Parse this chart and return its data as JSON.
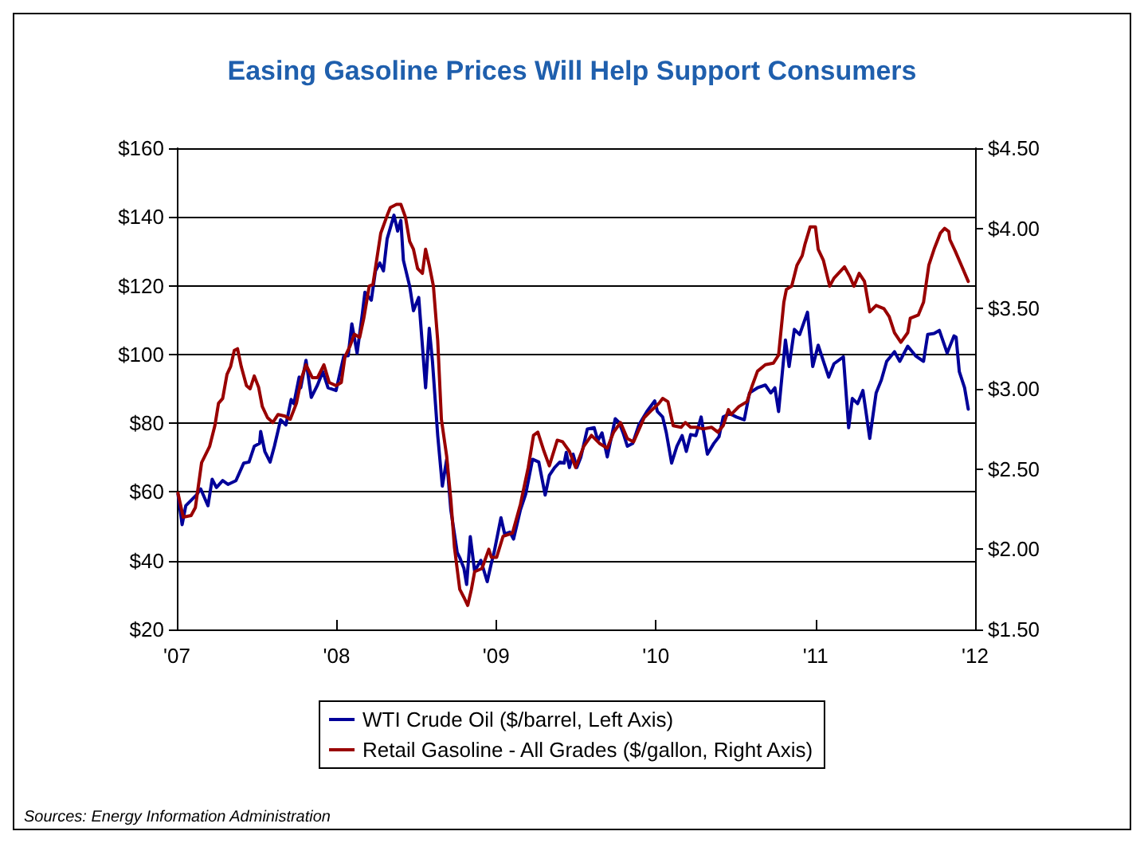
{
  "chart_data": {
    "type": "line",
    "title": "Easing Gasoline Prices Will Help Support Consumers",
    "xlim": [
      2007,
      2012
    ],
    "xticks": [
      {
        "value": 2007,
        "label": "'07"
      },
      {
        "value": 2008,
        "label": "'08"
      },
      {
        "value": 2009,
        "label": "'09"
      },
      {
        "value": 2010,
        "label": "'10"
      },
      {
        "value": 2011,
        "label": "'11"
      },
      {
        "value": 2012,
        "label": "'12"
      }
    ],
    "ylim": [
      20,
      160
    ],
    "yticks": [
      {
        "value": 20,
        "label": "$20"
      },
      {
        "value": 40,
        "label": "$40"
      },
      {
        "value": 60,
        "label": "$60"
      },
      {
        "value": 80,
        "label": "$80"
      },
      {
        "value": 100,
        "label": "$100"
      },
      {
        "value": 120,
        "label": "$120"
      },
      {
        "value": 140,
        "label": "$140"
      },
      {
        "value": 160,
        "label": "$160"
      }
    ],
    "y2lim": [
      1.5,
      4.5
    ],
    "y2ticks": [
      {
        "value": 1.5,
        "label": "$1.50"
      },
      {
        "value": 2,
        "label": "$2.00"
      },
      {
        "value": 2.5,
        "label": "$2.50"
      },
      {
        "value": 3,
        "label": "$3.00"
      },
      {
        "value": 3.5,
        "label": "$3.50"
      },
      {
        "value": 4,
        "label": "$4.00"
      },
      {
        "value": 4.5,
        "label": "$4.50"
      }
    ],
    "grid": "y",
    "legend": "bottom",
    "marker": "none",
    "line_style": "solid",
    "annotations": [
      "Sources: Energy Information Administration"
    ],
    "series": [
      {
        "name": "WTI Crude Oil ($/barrel, Left Axis)",
        "color": "#000099",
        "x": [
          2007.007,
          2007.033,
          2007.056,
          2007.122,
          2007.149,
          2007.195,
          2007.221,
          2007.248,
          2007.287,
          2007.32,
          2007.37,
          2007.419,
          2007.452,
          2007.485,
          2007.518,
          2007.525,
          2007.551,
          2007.584,
          2007.611,
          2007.65,
          2007.683,
          2007.716,
          2007.733,
          2007.766,
          2007.776,
          2007.809,
          2007.842,
          2007.881,
          2007.914,
          2007.947,
          2007.997,
          2008.046,
          2008.073,
          2008.096,
          2008.129,
          2008.162,
          2008.178,
          2008.218,
          2008.244,
          2008.271,
          2008.294,
          2008.317,
          2008.36,
          2008.383,
          2008.403,
          2008.419,
          2008.459,
          2008.482,
          2008.515,
          2008.558,
          2008.581,
          2008.601,
          2008.634,
          2008.663,
          2008.69,
          2008.716,
          2008.756,
          2008.772,
          2008.798,
          2008.815,
          2008.838,
          2008.865,
          2008.904,
          2008.944,
          2008.97,
          2008.987,
          2009.03,
          2009.053,
          2009.086,
          2009.109,
          2009.152,
          2009.185,
          2009.228,
          2009.267,
          2009.307,
          2009.333,
          2009.366,
          2009.399,
          2009.426,
          2009.439,
          2009.459,
          2009.482,
          2009.505,
          2009.531,
          2009.571,
          2009.614,
          2009.637,
          2009.663,
          2009.696,
          2009.746,
          2009.769,
          2009.795,
          2009.822,
          2009.855,
          2009.894,
          2009.944,
          2009.993,
          2010.01,
          2010.043,
          2010.066,
          2010.099,
          2010.132,
          2010.165,
          2010.191,
          2010.218,
          2010.251,
          2010.284,
          2010.323,
          2010.363,
          2010.396,
          2010.422,
          2010.455,
          2010.472,
          2010.505,
          2010.554,
          2010.587,
          2010.637,
          2010.686,
          2010.72,
          2010.746,
          2010.769,
          2010.812,
          2010.835,
          2010.868,
          2010.901,
          2010.95,
          2010.983,
          2011.017,
          2011.05,
          2011.083,
          2011.116,
          2011.175,
          2011.208,
          2011.231,
          2011.264,
          2011.297,
          2011.314,
          2011.34,
          2011.38,
          2011.413,
          2011.446,
          2011.495,
          2011.528,
          2011.578,
          2011.627,
          2011.677,
          2011.703,
          2011.743,
          2011.776,
          2011.825,
          2011.868,
          2011.881,
          2011.901,
          2011.934,
          2011.957
        ],
        "values": [
          59.4,
          50.5,
          56,
          59.1,
          60.9,
          56,
          63.7,
          61.3,
          63.3,
          62.2,
          63.3,
          68.4,
          68.7,
          73.3,
          74.1,
          77.6,
          71.8,
          68.7,
          73.3,
          81,
          79.5,
          86.9,
          85.7,
          93.4,
          90.3,
          98.3,
          87.5,
          91.1,
          95,
          90.3,
          89.5,
          99.6,
          99.6,
          108.9,
          100.4,
          111.9,
          118.1,
          115.8,
          124.3,
          126.6,
          124.3,
          133.6,
          140.5,
          135.9,
          139,
          127.4,
          119.7,
          112.7,
          116.6,
          90.3,
          107.6,
          98,
          76.4,
          61.7,
          69.5,
          54.8,
          42.4,
          40.9,
          37.8,
          33.1,
          47,
          37,
          40.1,
          33.9,
          39.3,
          42.4,
          52.5,
          47.8,
          48.3,
          46.3,
          54.8,
          59.4,
          69.5,
          68.7,
          59.1,
          64.8,
          67.1,
          68.7,
          68.4,
          71.5,
          67.1,
          71,
          67.1,
          70.2,
          78.3,
          78.7,
          74.9,
          77.2,
          70.2,
          81.3,
          80.3,
          77.2,
          73.3,
          74.1,
          79.5,
          83.4,
          86.5,
          83.4,
          81.8,
          77.2,
          68.4,
          73.3,
          76.4,
          71.8,
          76.7,
          76.4,
          81.8,
          71,
          74.1,
          76.1,
          81.8,
          82.6,
          82.6,
          81.8,
          81,
          88.8,
          90.3,
          91.1,
          88.8,
          90.3,
          83.4,
          104.2,
          96.5,
          107.3,
          105.8,
          112.3,
          96.5,
          102.7,
          98,
          93.4,
          97.3,
          99.3,
          78.7,
          87.2,
          85.7,
          89.5,
          84.1,
          75.6,
          88.8,
          92.6,
          98,
          100.8,
          98,
          102.4,
          99.6,
          98,
          105.8,
          106.1,
          107,
          100.4,
          105.4,
          105,
          95,
          90.3,
          84.1
        ]
      },
      {
        "name": "Retail Gasoline - All Grades ($/gallon, Right Axis)",
        "color": "#990000",
        "axis": "y2",
        "x": [
          2007.007,
          2007.04,
          2007.089,
          2007.116,
          2007.155,
          2007.205,
          2007.238,
          2007.261,
          2007.287,
          2007.314,
          2007.337,
          2007.36,
          2007.38,
          2007.403,
          2007.436,
          2007.459,
          2007.485,
          2007.512,
          2007.535,
          2007.568,
          2007.601,
          2007.634,
          2007.677,
          2007.71,
          2007.749,
          2007.782,
          2007.809,
          2007.848,
          2007.881,
          2007.921,
          2007.954,
          2007.997,
          2008.03,
          2008.053,
          2008.086,
          2008.112,
          2008.145,
          2008.171,
          2008.205,
          2008.228,
          2008.251,
          2008.277,
          2008.317,
          2008.337,
          2008.376,
          2008.403,
          2008.432,
          2008.458,
          2008.482,
          2008.508,
          2008.538,
          2008.558,
          2008.581,
          2008.607,
          2008.634,
          2008.657,
          2008.69,
          2008.716,
          2008.739,
          2008.772,
          2008.798,
          2008.822,
          2008.845,
          2008.865,
          2008.911,
          2008.954,
          2008.97,
          2009.003,
          2009.043,
          2009.102,
          2009.152,
          2009.201,
          2009.234,
          2009.261,
          2009.3,
          2009.333,
          2009.383,
          2009.416,
          2009.459,
          2009.498,
          2009.548,
          2009.597,
          2009.647,
          2009.696,
          2009.736,
          2009.779,
          2009.822,
          2009.861,
          2009.927,
          2009.977,
          2010.02,
          2010.043,
          2010.076,
          2010.109,
          2010.158,
          2010.185,
          2010.218,
          2010.257,
          2010.297,
          2010.35,
          2010.389,
          2010.422,
          2010.455,
          2010.472,
          2010.521,
          2010.571,
          2010.604,
          2010.637,
          2010.686,
          2010.736,
          2010.769,
          2010.802,
          2010.818,
          2010.851,
          2010.884,
          2010.917,
          2010.934,
          2010.967,
          2011.0,
          2011.017,
          2011.05,
          2011.089,
          2011.116,
          2011.182,
          2011.215,
          2011.241,
          2011.274,
          2011.307,
          2011.34,
          2011.38,
          2011.429,
          2011.462,
          2011.495,
          2011.535,
          2011.578,
          2011.594,
          2011.644,
          2011.677,
          2011.71,
          2011.743,
          2011.782,
          2011.809,
          2011.835,
          2011.842,
          2011.875,
          2011.914,
          2011.957
        ],
        "values": [
          2.35,
          2.2,
          2.21,
          2.26,
          2.54,
          2.64,
          2.77,
          2.91,
          2.94,
          3.09,
          3.14,
          3.24,
          3.25,
          3.14,
          3.02,
          3.0,
          3.08,
          3.01,
          2.89,
          2.82,
          2.79,
          2.84,
          2.83,
          2.81,
          2.91,
          3.07,
          3.15,
          3.07,
          3.07,
          3.15,
          3.04,
          3.02,
          3.04,
          3.2,
          3.27,
          3.34,
          3.32,
          3.44,
          3.64,
          3.65,
          3.8,
          3.97,
          4.08,
          4.13,
          4.15,
          4.15,
          4.07,
          3.92,
          3.87,
          3.75,
          3.72,
          3.87,
          3.77,
          3.64,
          3.3,
          2.81,
          2.58,
          2.31,
          2.01,
          1.75,
          1.7,
          1.65,
          1.75,
          1.86,
          1.88,
          2.0,
          1.95,
          1.95,
          2.08,
          2.1,
          2.28,
          2.51,
          2.71,
          2.73,
          2.61,
          2.52,
          2.68,
          2.67,
          2.61,
          2.51,
          2.64,
          2.71,
          2.66,
          2.63,
          2.73,
          2.79,
          2.69,
          2.67,
          2.82,
          2.87,
          2.91,
          2.94,
          2.92,
          2.77,
          2.76,
          2.79,
          2.76,
          2.76,
          2.75,
          2.76,
          2.73,
          2.77,
          2.87,
          2.84,
          2.89,
          2.92,
          3.02,
          3.11,
          3.15,
          3.16,
          3.21,
          3.54,
          3.62,
          3.64,
          3.77,
          3.83,
          3.9,
          4.01,
          4.01,
          3.87,
          3.8,
          3.64,
          3.69,
          3.76,
          3.7,
          3.64,
          3.72,
          3.67,
          3.48,
          3.52,
          3.5,
          3.45,
          3.35,
          3.29,
          3.35,
          3.44,
          3.46,
          3.54,
          3.77,
          3.87,
          3.97,
          4.0,
          3.98,
          3.93,
          3.86,
          3.77,
          3.67
        ]
      }
    ]
  }
}
